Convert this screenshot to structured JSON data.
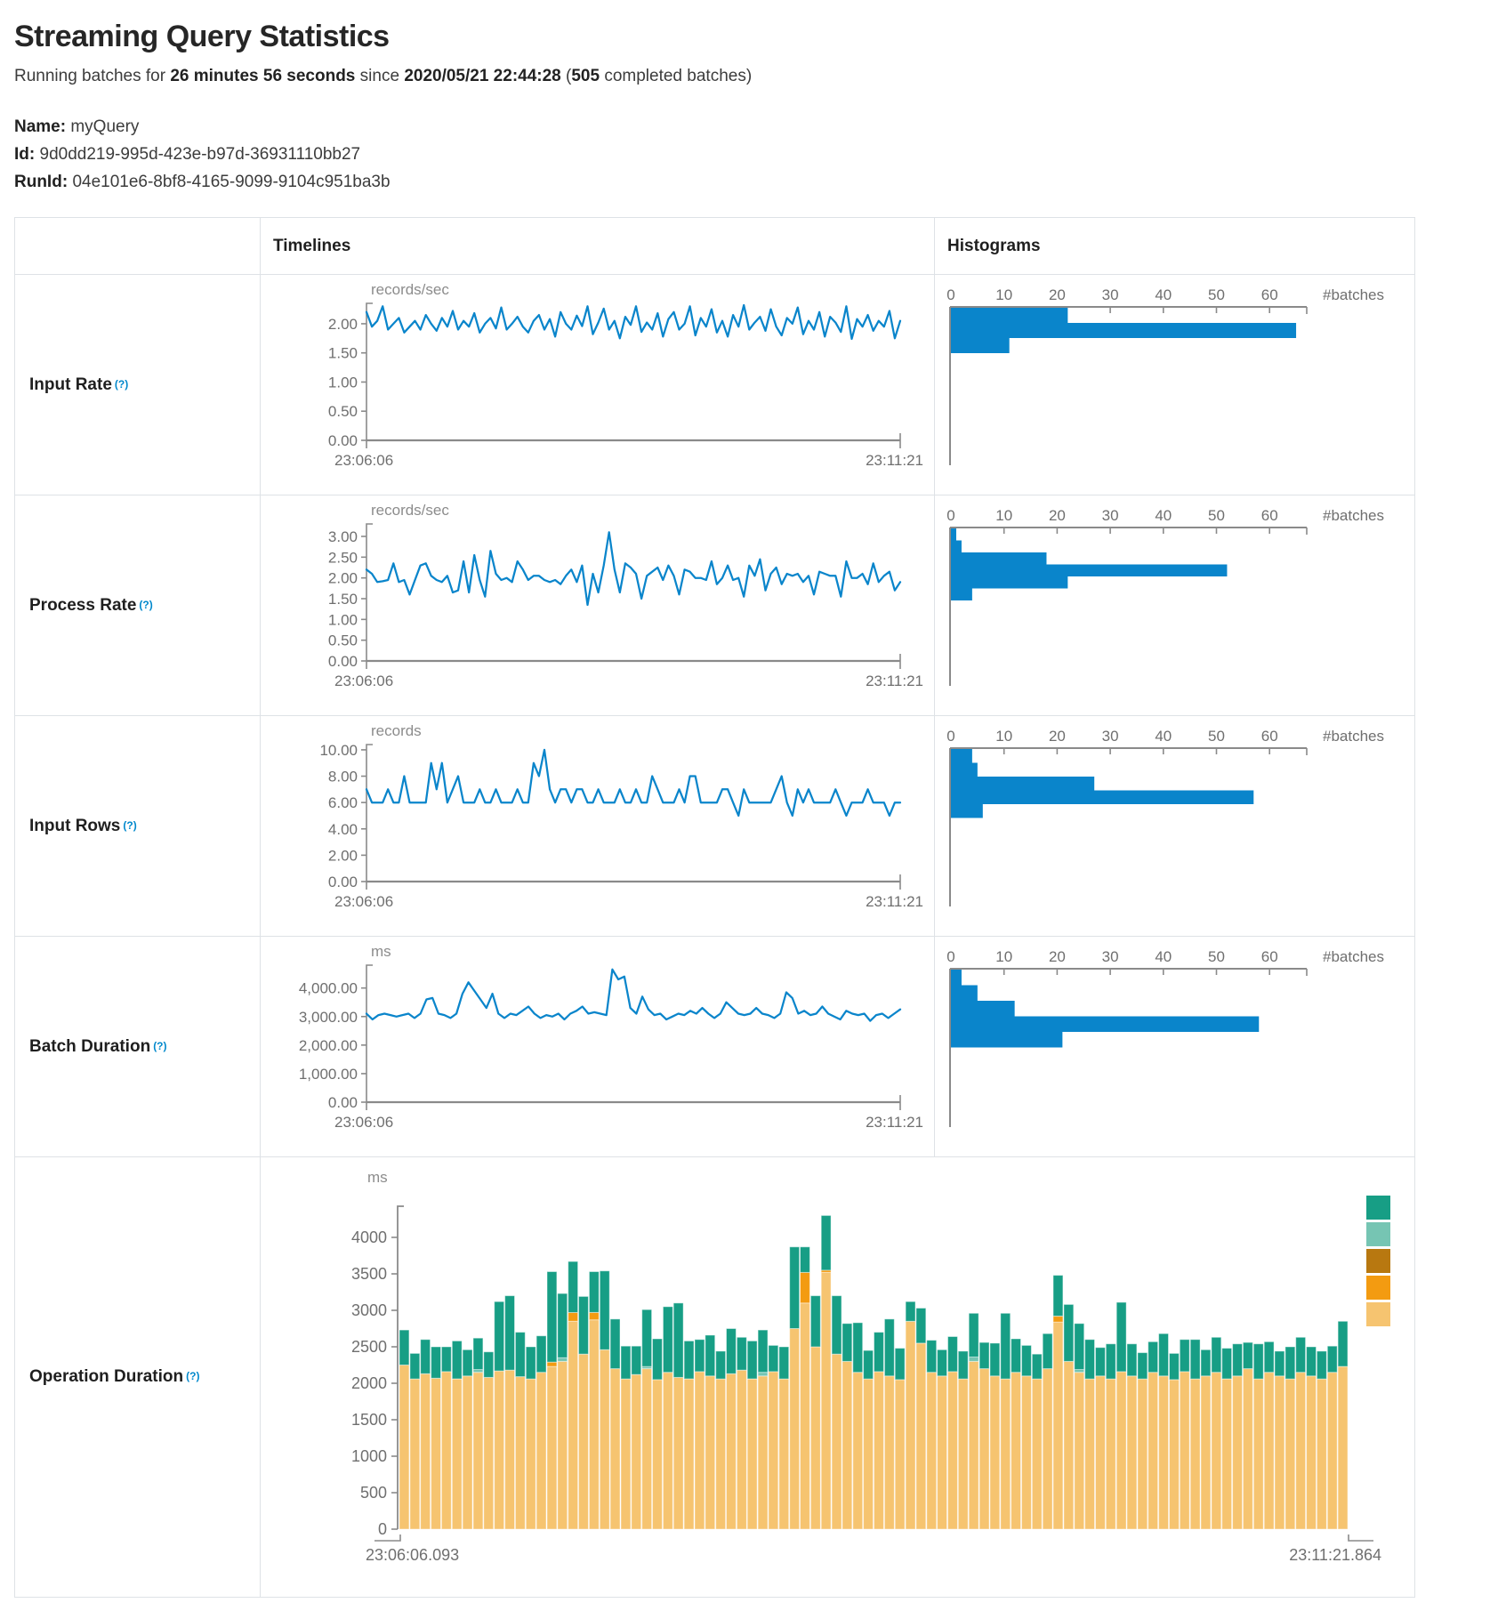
{
  "header": {
    "title": "Streaming Query Statistics",
    "running_prefix": "Running batches for ",
    "duration": "26 minutes 56 seconds",
    "since_text": " since ",
    "timestamp": "2020/05/21 22:44:28",
    "paren_open": " (",
    "batches_count": "505",
    "batches_suffix": " completed batches)",
    "name_label": "Name:",
    "name_value": "myQuery",
    "id_label": "Id:",
    "id_value": "9d0dd219-995d-423e-b97d-36931110bb27",
    "runid_label": "RunId:",
    "runid_value": "04e101e6-8bf8-4165-9099-9104c951ba3b"
  },
  "table": {
    "col_headers": {
      "timelines": "Timelines",
      "histograms": "Histograms"
    },
    "rows": [
      {
        "label": "Input Rate",
        "help": "(?)"
      },
      {
        "label": "Process Rate",
        "help": "(?)"
      },
      {
        "label": "Input Rows",
        "help": "(?)"
      },
      {
        "label": "Batch Duration",
        "help": "(?)"
      },
      {
        "label": "Operation Duration",
        "help": "(?)"
      }
    ]
  },
  "colors": {
    "line": "#0a85cb",
    "bar": "#0a85cb",
    "axis": "#8a8a8a",
    "tick_text": "#6f6f6f",
    "unit_text": "#8c8c8c",
    "border": "#dee2e6",
    "help": "#0088cc"
  },
  "chart_data": [
    {
      "id": "input-rate-timeline",
      "type": "line",
      "title": "Input Rate timeline",
      "unit": "records/sec",
      "x_start": "23:06:06",
      "x_end": "23:11:21",
      "yticks": [
        0,
        0.5,
        1,
        1.5,
        2
      ],
      "ytick_format": "2dp",
      "ymax": 2.35,
      "values": [
        2.2,
        1.95,
        2.05,
        2.3,
        1.9,
        2.0,
        2.1,
        1.85,
        1.95,
        2.05,
        1.9,
        2.15,
        2.0,
        1.88,
        2.1,
        1.95,
        2.22,
        1.9,
        2.05,
        1.95,
        2.18,
        1.85,
        2.0,
        2.1,
        1.92,
        2.28,
        1.9,
        2.0,
        2.12,
        1.95,
        1.85,
        2.05,
        2.15,
        1.9,
        2.08,
        1.78,
        2.2,
        2.0,
        1.9,
        2.14,
        1.96,
        2.3,
        1.82,
        2.02,
        2.26,
        1.9,
        2.05,
        1.75,
        2.12,
        1.98,
        2.3,
        1.86,
        2.02,
        1.9,
        2.18,
        1.78,
        2.08,
        2.2,
        1.9,
        2.0,
        2.3,
        1.8,
        2.1,
        1.95,
        2.25,
        1.85,
        2.05,
        1.78,
        2.15,
        1.95,
        2.32,
        1.9,
        2.02,
        2.12,
        1.88,
        2.25,
        1.95,
        1.8,
        2.1,
        2.0,
        2.28,
        1.82,
        2.05,
        1.9,
        2.2,
        1.78,
        2.12,
        2.02,
        1.86,
        2.3,
        1.74,
        2.08,
        1.95,
        2.15,
        1.88,
        2.05,
        1.95,
        2.22,
        1.75,
        2.05
      ]
    },
    {
      "id": "input-rate-histogram",
      "type": "bar",
      "title": "Input Rate histogram",
      "xlabel": "#batches",
      "xticks": [
        0,
        10,
        20,
        30,
        40,
        50,
        60
      ],
      "xmax": 67,
      "bin_height": 17,
      "values": [
        22,
        65,
        11
      ]
    },
    {
      "id": "process-rate-timeline",
      "type": "line",
      "title": "Process Rate timeline",
      "unit": "records/sec",
      "x_start": "23:06:06",
      "x_end": "23:11:21",
      "yticks": [
        0,
        0.5,
        1,
        1.5,
        2,
        2.5,
        3
      ],
      "ytick_format": "2dp",
      "ymax": 3.3,
      "values": [
        2.2,
        2.1,
        1.9,
        1.92,
        1.95,
        2.35,
        1.9,
        1.95,
        1.6,
        1.95,
        2.3,
        2.35,
        2.05,
        1.95,
        1.9,
        2.05,
        1.65,
        1.7,
        2.4,
        1.65,
        2.55,
        1.95,
        1.55,
        2.65,
        2.1,
        1.95,
        2.0,
        1.9,
        2.4,
        2.2,
        1.95,
        2.05,
        2.05,
        1.95,
        1.9,
        1.95,
        1.85,
        2.05,
        2.2,
        1.9,
        2.3,
        1.35,
        2.1,
        1.65,
        2.3,
        3.1,
        2.2,
        1.65,
        2.35,
        2.25,
        2.1,
        1.5,
        2.05,
        2.15,
        2.25,
        1.95,
        2.3,
        2.05,
        1.6,
        2.2,
        2.15,
        2.0,
        2.0,
        1.95,
        2.4,
        1.85,
        2.0,
        2.3,
        1.95,
        2.0,
        1.55,
        2.3,
        2.05,
        2.45,
        1.7,
        2.1,
        2.25,
        1.85,
        2.1,
        2.05,
        2.1,
        1.9,
        2.05,
        1.6,
        2.15,
        2.1,
        2.05,
        2.05,
        1.55,
        2.4,
        2.0,
        2.0,
        2.1,
        1.85,
        2.35,
        1.9,
        2.05,
        2.15,
        1.7,
        1.9
      ]
    },
    {
      "id": "process-rate-histogram",
      "type": "bar",
      "title": "Process Rate histogram",
      "xlabel": "#batches",
      "xticks": [
        0,
        10,
        20,
        30,
        40,
        50,
        60
      ],
      "xmax": 67,
      "bin_height": 13.5,
      "values": [
        1,
        2,
        18,
        52,
        22,
        4
      ]
    },
    {
      "id": "input-rows-timeline",
      "type": "line",
      "title": "Input Rows timeline",
      "unit": "records",
      "x_start": "23:06:06",
      "x_end": "23:11:21",
      "yticks": [
        0,
        2,
        4,
        6,
        8,
        10
      ],
      "ytick_format": "2dp",
      "ymax": 10.4,
      "values": [
        7,
        6,
        6,
        6,
        7,
        6,
        6,
        8,
        6,
        6,
        6,
        6,
        9,
        7,
        9,
        6,
        7,
        8,
        6,
        6,
        6,
        7,
        6,
        6,
        7,
        6,
        6,
        6,
        7,
        6,
        6,
        9,
        8,
        10,
        7,
        6,
        7,
        7,
        6,
        7,
        7,
        6,
        6,
        7,
        6,
        6,
        6,
        7,
        6,
        6,
        7,
        6,
        6,
        8,
        7,
        6,
        6,
        6,
        7,
        6,
        8,
        8,
        6,
        6,
        6,
        6,
        7,
        7,
        6,
        5,
        7,
        6,
        6,
        6,
        6,
        6,
        7,
        8,
        6,
        5,
        7,
        6,
        7,
        6,
        6,
        6,
        6,
        7,
        6,
        5,
        6,
        6,
        6,
        7,
        6,
        6,
        6,
        5,
        6,
        6
      ]
    },
    {
      "id": "input-rows-histogram",
      "type": "bar",
      "title": "Input Rows histogram",
      "xlabel": "#batches",
      "xticks": [
        0,
        10,
        20,
        30,
        40,
        50,
        60
      ],
      "xmax": 67,
      "bin_height": 15.5,
      "values": [
        4,
        5,
        27,
        57,
        6
      ]
    },
    {
      "id": "batch-duration-timeline",
      "type": "line",
      "title": "Batch Duration timeline",
      "unit": "ms",
      "x_start": "23:06:06",
      "x_end": "23:11:21",
      "yticks": [
        0,
        1000,
        2000,
        3000,
        4000
      ],
      "ytick_format": "comma2",
      "ymax": 4800,
      "values": [
        3100,
        2900,
        3050,
        3100,
        3050,
        3000,
        3050,
        3100,
        2950,
        3100,
        3600,
        3650,
        3100,
        3050,
        2950,
        3100,
        3800,
        4200,
        3900,
        3600,
        3300,
        3800,
        3100,
        2950,
        3100,
        3050,
        3200,
        3350,
        3100,
        2950,
        3050,
        3000,
        3100,
        2900,
        3100,
        3200,
        3350,
        3100,
        3150,
        3100,
        3050,
        4650,
        4300,
        4400,
        3300,
        3100,
        3700,
        3250,
        3050,
        3100,
        2900,
        3000,
        3100,
        3050,
        3200,
        3100,
        3300,
        3100,
        2950,
        3100,
        3500,
        3300,
        3100,
        3050,
        3100,
        3300,
        3100,
        3050,
        2950,
        3100,
        3850,
        3650,
        3100,
        3200,
        3050,
        3100,
        3350,
        3100,
        3000,
        2900,
        3200,
        3100,
        3050,
        3100,
        2850,
        3050,
        3100,
        2950,
        3100,
        3250
      ]
    },
    {
      "id": "batch-duration-histogram",
      "type": "bar",
      "title": "Batch Duration histogram",
      "xlabel": "#batches",
      "xticks": [
        0,
        10,
        20,
        30,
        40,
        50,
        60
      ],
      "xmax": 67,
      "bin_height": 17.5,
      "values": [
        2,
        5,
        12,
        58,
        21
      ]
    },
    {
      "id": "operation-duration",
      "type": "stacked_bar",
      "title": "Operation Duration",
      "unit": "ms",
      "x_start": "23:06:06.093",
      "x_end": "23:11:21.864",
      "yticks": [
        0,
        500,
        1000,
        1500,
        2000,
        2500,
        3000,
        3500,
        4000
      ],
      "ytick_format": "int",
      "ymax": 4430,
      "segment_colors": [
        "#F6C470",
        "#F39B11",
        "#B87810",
        "#76C5B3",
        "#179E85"
      ],
      "legend_colors": [
        "#179E85",
        "#76C5B3",
        "#B87810",
        "#F39B11",
        "#F6C470"
      ],
      "bars": [
        [
          2250,
          0,
          0,
          0,
          480
        ],
        [
          2060,
          0,
          0,
          0,
          350
        ],
        [
          2130,
          0,
          0,
          0,
          470
        ],
        [
          2070,
          0,
          0,
          0,
          430
        ],
        [
          2160,
          0,
          0,
          0,
          340
        ],
        [
          2060,
          0,
          0,
          0,
          520
        ],
        [
          2100,
          0,
          0,
          0,
          360
        ],
        [
          2150,
          0,
          0,
          40,
          430
        ],
        [
          2080,
          0,
          0,
          0,
          350
        ],
        [
          2170,
          0,
          0,
          0,
          950
        ],
        [
          2180,
          0,
          0,
          0,
          1020
        ],
        [
          2090,
          0,
          0,
          0,
          610
        ],
        [
          2060,
          0,
          0,
          0,
          440
        ],
        [
          2150,
          0,
          0,
          0,
          500
        ],
        [
          2230,
          60,
          0,
          0,
          1240
        ],
        [
          2300,
          0,
          0,
          50,
          880
        ],
        [
          2850,
          120,
          0,
          0,
          700
        ],
        [
          2400,
          0,
          0,
          0,
          790
        ],
        [
          2870,
          100,
          0,
          0,
          560
        ],
        [
          2460,
          0,
          0,
          0,
          1080
        ],
        [
          2200,
          0,
          0,
          0,
          680
        ],
        [
          2060,
          0,
          0,
          0,
          450
        ],
        [
          2120,
          0,
          0,
          0,
          390
        ],
        [
          2200,
          0,
          0,
          30,
          780
        ],
        [
          2050,
          0,
          0,
          0,
          560
        ],
        [
          2150,
          0,
          0,
          0,
          900
        ],
        [
          2080,
          0,
          0,
          0,
          1020
        ],
        [
          2060,
          0,
          0,
          0,
          520
        ],
        [
          2160,
          0,
          0,
          0,
          440
        ],
        [
          2100,
          0,
          0,
          0,
          560
        ],
        [
          2060,
          0,
          0,
          0,
          380
        ],
        [
          2130,
          0,
          0,
          0,
          620
        ],
        [
          2180,
          0,
          0,
          0,
          450
        ],
        [
          2060,
          0,
          0,
          0,
          520
        ],
        [
          2100,
          0,
          0,
          50,
          580
        ],
        [
          2160,
          0,
          0,
          0,
          360
        ],
        [
          2060,
          0,
          0,
          0,
          440
        ],
        [
          2750,
          0,
          0,
          0,
          1120
        ],
        [
          3100,
          420,
          0,
          0,
          350
        ],
        [
          2500,
          0,
          0,
          0,
          700
        ],
        [
          3520,
          30,
          0,
          0,
          750
        ],
        [
          2400,
          0,
          0,
          0,
          800
        ],
        [
          2300,
          0,
          0,
          0,
          520
        ],
        [
          2150,
          0,
          0,
          0,
          680
        ],
        [
          2060,
          0,
          0,
          0,
          390
        ],
        [
          2160,
          0,
          0,
          0,
          540
        ],
        [
          2100,
          0,
          0,
          0,
          780
        ],
        [
          2050,
          0,
          0,
          0,
          430
        ],
        [
          2850,
          0,
          0,
          0,
          270
        ],
        [
          2550,
          0,
          0,
          0,
          480
        ],
        [
          2150,
          0,
          0,
          0,
          440
        ],
        [
          2100,
          0,
          0,
          0,
          360
        ],
        [
          2160,
          0,
          0,
          0,
          480
        ],
        [
          2060,
          0,
          0,
          0,
          380
        ],
        [
          2300,
          0,
          0,
          60,
          600
        ],
        [
          2200,
          0,
          0,
          0,
          360
        ],
        [
          2100,
          0,
          0,
          0,
          450
        ],
        [
          2060,
          0,
          0,
          0,
          900
        ],
        [
          2150,
          0,
          0,
          0,
          460
        ],
        [
          2100,
          0,
          0,
          0,
          420
        ],
        [
          2060,
          0,
          0,
          0,
          340
        ],
        [
          2200,
          0,
          0,
          0,
          480
        ],
        [
          2840,
          80,
          0,
          0,
          560
        ],
        [
          2300,
          0,
          0,
          0,
          780
        ],
        [
          2150,
          0,
          0,
          40,
          630
        ],
        [
          2060,
          0,
          0,
          0,
          540
        ],
        [
          2100,
          0,
          0,
          0,
          390
        ],
        [
          2060,
          0,
          0,
          0,
          480
        ],
        [
          2160,
          0,
          0,
          0,
          950
        ],
        [
          2100,
          0,
          0,
          0,
          440
        ],
        [
          2060,
          0,
          0,
          0,
          360
        ],
        [
          2150,
          0,
          0,
          0,
          420
        ],
        [
          2100,
          0,
          0,
          0,
          580
        ],
        [
          2050,
          0,
          0,
          0,
          360
        ],
        [
          2160,
          0,
          0,
          0,
          440
        ],
        [
          2060,
          0,
          0,
          0,
          540
        ],
        [
          2100,
          0,
          0,
          0,
          360
        ],
        [
          2150,
          0,
          0,
          0,
          480
        ],
        [
          2060,
          0,
          0,
          0,
          420
        ],
        [
          2100,
          0,
          0,
          0,
          440
        ],
        [
          2200,
          0,
          0,
          0,
          360
        ],
        [
          2060,
          0,
          0,
          0,
          480
        ],
        [
          2150,
          0,
          0,
          0,
          420
        ],
        [
          2100,
          0,
          0,
          0,
          340
        ],
        [
          2060,
          0,
          0,
          0,
          440
        ],
        [
          2150,
          0,
          0,
          0,
          480
        ],
        [
          2100,
          0,
          0,
          0,
          400
        ],
        [
          2060,
          0,
          0,
          0,
          380
        ],
        [
          2150,
          0,
          0,
          0,
          360
        ],
        [
          2230,
          0,
          0,
          0,
          620
        ]
      ]
    }
  ]
}
